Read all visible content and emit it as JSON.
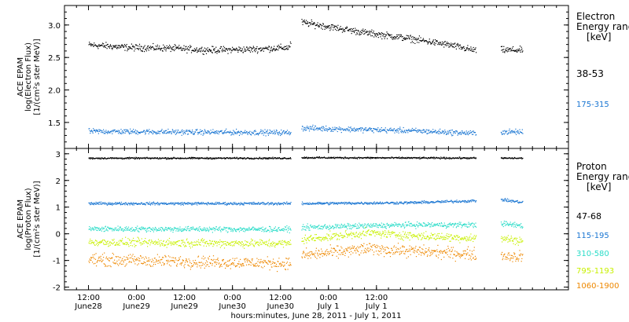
{
  "chart_data": [
    {
      "type": "scatter",
      "panel": "electron",
      "ylabel": [
        "ACE EPAM",
        "log(Electron Flux)",
        "[1/(cm²s ster MeV)]"
      ],
      "ylim": [
        1.1,
        3.3
      ],
      "yticks": [
        1.5,
        2.0,
        2.5,
        3.0
      ],
      "ytick_labels": [
        "1.5",
        "2.0",
        "2.5",
        "3.0"
      ],
      "legend_title": [
        "Electron",
        "Energy ranges",
        "[keV]"
      ],
      "legend_placement": "right",
      "gaps_hours": [
        [
          50.5,
          53.2
        ],
        [
          96.8,
          103.0
        ]
      ],
      "series": [
        {
          "name": "38-53",
          "color": "#000000",
          "x": [
            0,
            10,
            20,
            30,
            40,
            50,
            53,
            60,
            70,
            80,
            90,
            96,
            103,
            108
          ],
          "y": [
            2.7,
            2.66,
            2.65,
            2.62,
            2.63,
            2.66,
            3.05,
            2.98,
            2.88,
            2.8,
            2.7,
            2.62,
            2.62,
            2.62
          ],
          "noise": 0.05
        },
        {
          "name": "175-315",
          "color": "#1a76d2",
          "x": [
            0,
            20,
            50,
            53,
            80,
            96,
            103,
            108
          ],
          "y": [
            1.37,
            1.36,
            1.35,
            1.42,
            1.38,
            1.34,
            1.36,
            1.36
          ],
          "noise": 0.04
        }
      ]
    },
    {
      "type": "scatter",
      "panel": "proton",
      "ylabel": [
        "ACE EPAM",
        "log(Proton Flux)",
        "[1/(cm²s ster MeV)]"
      ],
      "ylim": [
        -2.1,
        3.2
      ],
      "yticks": [
        -2,
        -1,
        0,
        1,
        2,
        3
      ],
      "ytick_labels": [
        "-2",
        "-1",
        "0",
        "1",
        "2",
        "3"
      ],
      "legend_title": [
        "Proton",
        "Energy ranges",
        "[keV]"
      ],
      "legend_placement": "right",
      "gaps_hours": [
        [
          50.5,
          53.2
        ],
        [
          96.8,
          103.0
        ]
      ],
      "series": [
        {
          "name": "47-68",
          "color": "#000000",
          "x": [
            0,
            50,
            53,
            108
          ],
          "y": [
            2.85,
            2.85,
            2.87,
            2.85
          ],
          "noise": 0.03
        },
        {
          "name": "115-195",
          "color": "#1a76d2",
          "x": [
            0,
            50,
            53,
            80,
            96,
            103,
            108
          ],
          "y": [
            1.15,
            1.15,
            1.15,
            1.18,
            1.25,
            1.3,
            1.2
          ],
          "noise": 0.05
        },
        {
          "name": "310-580",
          "color": "#2adcc8",
          "x": [
            0,
            50,
            53,
            80,
            96,
            103,
            108
          ],
          "y": [
            0.2,
            0.18,
            0.25,
            0.35,
            0.35,
            0.4,
            0.32
          ],
          "noise": 0.1
        },
        {
          "name": "795-1193",
          "color": "#c8f000",
          "x": [
            0,
            50,
            53,
            70,
            80,
            96,
            103,
            108
          ],
          "y": [
            -0.3,
            -0.35,
            -0.2,
            0.05,
            -0.05,
            -0.15,
            -0.15,
            -0.25
          ],
          "noise": 0.15
        },
        {
          "name": "1060-1900",
          "color": "#ee8800",
          "x": [
            0,
            50,
            53,
            70,
            96,
            103,
            108
          ],
          "y": [
            -0.95,
            -1.1,
            -0.8,
            -0.55,
            -0.75,
            -0.8,
            -0.85
          ],
          "noise": 0.22
        }
      ]
    }
  ],
  "x_axis": {
    "xlim_hours": [
      -6,
      120
    ],
    "ticks": [
      {
        "h": 0,
        "line1": "12:00",
        "line2": "June28"
      },
      {
        "h": 12,
        "line1": "0:00",
        "line2": "June29"
      },
      {
        "h": 24,
        "line1": "12:00",
        "line2": "June29"
      },
      {
        "h": 36,
        "line1": "0:00",
        "line2": "June30"
      },
      {
        "h": 48,
        "line1": "12:00",
        "line2": "June30"
      },
      {
        "h": 60,
        "line1": "0:00",
        "line2": "July 1"
      },
      {
        "h": 72,
        "line1": "12:00",
        "line2": "July 1"
      }
    ],
    "label": "hours:minutes, June 28, 2011 - July  1, 2011"
  }
}
